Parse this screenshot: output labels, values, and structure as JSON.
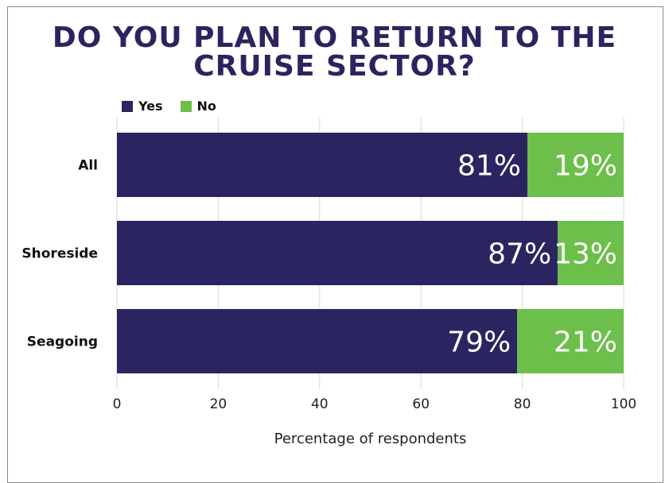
{
  "chart_data": {
    "type": "bar",
    "orientation": "horizontal",
    "stacked": true,
    "title": "DO YOU PLAN TO RETURN TO THE CRUISE SECTOR?",
    "title_lines": [
      "DO YOU PLAN TO RETURN TO THE",
      "CRUISE SECTOR?"
    ],
    "categories": [
      "All",
      "Shoreside",
      "Seagoing"
    ],
    "series": [
      {
        "name": "Yes",
        "values": [
          81,
          87,
          79
        ],
        "labels": [
          "81%",
          "87%",
          "79%"
        ],
        "color": "#2a2560"
      },
      {
        "name": "No",
        "values": [
          19,
          13,
          21
        ],
        "labels": [
          "19%",
          "13%",
          "21%"
        ],
        "color": "#6cbf4a"
      }
    ],
    "xlabel": "Percentage of respondents",
    "ylabel": "",
    "xlim": [
      0,
      100
    ],
    "xticks": [
      0,
      20,
      40,
      60,
      80,
      100
    ],
    "xtick_labels": [
      "0",
      "20",
      "40",
      "60",
      "80",
      "100"
    ],
    "grid": "vertical",
    "legend_position": "top-left"
  }
}
